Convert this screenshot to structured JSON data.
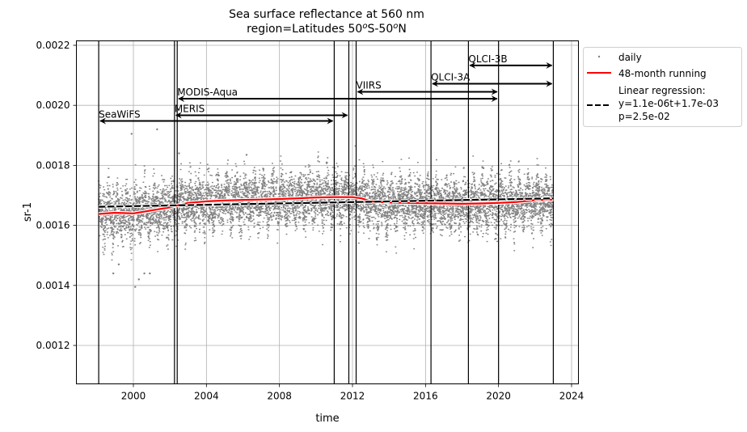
{
  "chart_data": {
    "type": "scatter",
    "title": "Sea surface reflectance at 560 nm",
    "subtitle_parts": [
      "region=Latitudes 50",
      "o",
      "S-50",
      "o",
      "N"
    ],
    "xlabel": "time",
    "ylabel": "sr-1",
    "xlim": [
      1997.3,
      2024.4
    ],
    "ylim": [
      0.00107,
      0.00221
    ],
    "x_ticks": [
      2000,
      2004,
      2008,
      2012,
      2016,
      2020,
      2024
    ],
    "x_tick_labels": [
      "2000",
      "2004",
      "2008",
      "2012",
      "2016",
      "2020",
      "2024"
    ],
    "y_ticks": [
      0.0012,
      0.0014,
      0.0016,
      0.0018,
      0.002,
      0.0022
    ],
    "y_tick_labels": [
      "0.0012",
      "0.0014",
      "0.0016",
      "0.0018",
      "0.0020",
      "0.0022"
    ],
    "grid": true,
    "legend_position": "outside-top-right",
    "legend": [
      {
        "label": "daily",
        "style": "gray-dot"
      },
      {
        "label": "48-month running",
        "style": "red-line"
      },
      {
        "label": "Linear regression:\ny=1.1e-06t+1.7e-03\np=2.5e-02",
        "lines": [
          "Linear regression:",
          "y=1.1e-06t+1.7e-03",
          "p=2.5e-02"
        ],
        "style": "black-dashed"
      }
    ],
    "sensor_boundaries": [
      1998.1,
      2002.25,
      2002.4,
      2011.0,
      2011.8,
      2012.2,
      2016.3,
      2018.35,
      2020.0,
      2023.0
    ],
    "sensors": [
      {
        "name": "SeaWiFS",
        "start": 1998.1,
        "end": 2011.0,
        "y": 0.001948
      },
      {
        "name": "MERIS",
        "start": 2002.25,
        "end": 2011.8,
        "y": 0.001967
      },
      {
        "name": "MODIS-Aqua",
        "start": 2002.4,
        "end": 2020.0,
        "y": 0.002022
      },
      {
        "name": "VIIRS",
        "start": 2012.2,
        "end": 2020.0,
        "y": 0.002045
      },
      {
        "name": "QLCI-3A",
        "start": 2016.3,
        "end": 2023.0,
        "y": 0.002072
      },
      {
        "name": "QLCI-3B",
        "start": 2018.35,
        "end": 2023.0,
        "y": 0.002133
      }
    ],
    "series": [
      {
        "name": "48-month running",
        "color": "#ff0000",
        "x": [
          1998.1,
          1999.0,
          2000.0,
          2001.0,
          2002.0,
          2002.5,
          2003.0,
          2004.0,
          2005.0,
          2006.0,
          2007.0,
          2008.0,
          2009.0,
          2010.0,
          2011.0,
          2012.0,
          2012.5,
          2013.0,
          2014.0,
          2015.0,
          2016.0,
          2017.0,
          2018.0,
          2019.0,
          2020.0,
          2021.0,
          2022.0,
          2023.0
        ],
        "y": [
          0.001638,
          0.001642,
          0.00164,
          0.00165,
          0.00166,
          0.001668,
          0.001675,
          0.00168,
          0.001683,
          0.001685,
          0.001686,
          0.001688,
          0.00169,
          0.001693,
          0.001694,
          0.001694,
          0.00169,
          0.00168,
          0.001676,
          0.001675,
          0.001674,
          0.001673,
          0.001672,
          0.001673,
          0.001675,
          0.001678,
          0.001684,
          0.001686
        ]
      },
      {
        "name": "Linear regression",
        "color": "#000000",
        "slope": 1.1e-06,
        "intercept": 0.0017,
        "x": [
          1998.1,
          2023.0
        ],
        "y": [
          0.001662,
          0.00169
        ]
      }
    ],
    "daily_stats": {
      "name": "daily",
      "color": "#808080",
      "x_start": 1998.1,
      "x_end": 2023.0,
      "typical_range": [
        0.00155,
        0.0018
      ],
      "outliers": [
        [
          1998.9,
          0.00144
        ],
        [
          1999.2,
          0.00147
        ],
        [
          2000.1,
          0.001395
        ],
        [
          2000.3,
          0.00142
        ],
        [
          2000.6,
          0.00144
        ],
        [
          2000.9,
          0.00144
        ],
        [
          1999.9,
          0.001905
        ],
        [
          2001.3,
          0.00192
        ],
        [
          2002.5,
          0.00184
        ],
        [
          2006.2,
          0.001835
        ]
      ]
    }
  }
}
